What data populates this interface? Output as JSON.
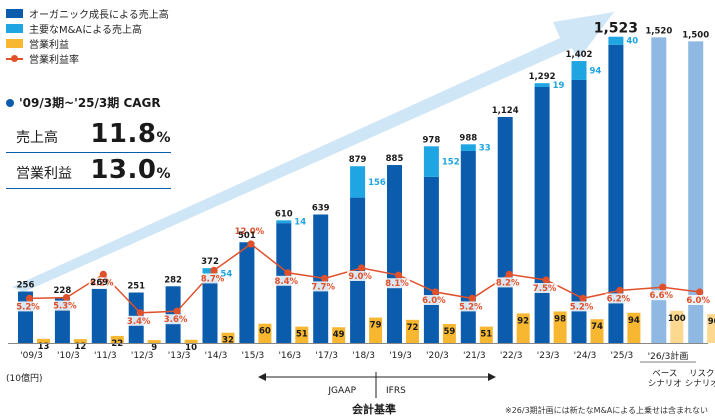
{
  "legend": {
    "organic": "オーガニック成長による売上高",
    "mna": "主要なM&Aによる売上高",
    "op": "営業利益",
    "margin": "営業利益率"
  },
  "cagr": {
    "title": "'09/3期~'25/3期 CAGR",
    "sales_label": "売上高",
    "sales_value": "11.8",
    "op_label": "営業利益",
    "op_value": "13.0",
    "unit": "%"
  },
  "unit_label": "(10億円)",
  "standards": {
    "jgaap": "JGAAP",
    "ifrs": "IFRS",
    "title": "会計基準"
  },
  "footnote": "※26/3期計画には新たなM&Aによる上乗せは含まれない",
  "colors": {
    "organic": "#0b5cad",
    "mna": "#1ea5e2",
    "op": "#f7b731",
    "plan_sales": "#8fb9e2",
    "plan_op": "#fcd98e",
    "margin": "#e0502a",
    "arrow": "#cfe6f7"
  },
  "chart_data": {
    "type": "bar",
    "categories": [
      "'09/3",
      "'10/3",
      "'11/3",
      "'12/3",
      "'13/3",
      "'14/3",
      "'15/3",
      "'16/3",
      "'17/3",
      "'18/3",
      "'19/3",
      "'20/3",
      "'21/3",
      "'22/3",
      "'23/3",
      "'24/3",
      "'25/3",
      "'26/3計画 ベース シナリオ",
      "'26/3計画 リスク シナリオ"
    ],
    "category_lines": [
      [
        "'09/3"
      ],
      [
        "'10/3"
      ],
      [
        "'11/3"
      ],
      [
        "'12/3"
      ],
      [
        "'13/3"
      ],
      [
        "'14/3"
      ],
      [
        "'15/3"
      ],
      [
        "'16/3"
      ],
      [
        "'17/3"
      ],
      [
        "'18/3"
      ],
      [
        "'19/3"
      ],
      [
        "'20/3"
      ],
      [
        "'21/3"
      ],
      [
        "'22/3"
      ],
      [
        "'23/3"
      ],
      [
        "'24/3"
      ],
      [
        "'25/3"
      ],
      [
        "ベース",
        "シナリオ"
      ],
      [
        "リスク",
        "シナリオ"
      ]
    ],
    "plan_header": "'26/3計画",
    "series": [
      {
        "name": "オーガニック成長による売上高",
        "values": [
          256,
          228,
          269,
          251,
          282,
          318,
          501,
          596,
          639,
          723,
          885,
          826,
          955,
          1124,
          1273,
          1308,
          1483,
          1520,
          1500
        ]
      },
      {
        "name": "主要なM&Aによる売上高",
        "values": [
          0,
          0,
          0,
          0,
          0,
          54,
          0,
          14,
          0,
          156,
          0,
          152,
          33,
          0,
          19,
          94,
          40,
          0,
          0
        ]
      },
      {
        "name": "営業利益",
        "values": [
          13,
          12,
          22,
          9,
          10,
          32,
          60,
          51,
          49,
          79,
          72,
          59,
          51,
          92,
          98,
          74,
          94,
          100,
          90
        ]
      },
      {
        "name": "営業利益率(%)",
        "values": [
          5.2,
          5.3,
          8.2,
          3.4,
          3.6,
          8.7,
          12.0,
          8.4,
          7.7,
          9.0,
          8.1,
          6.0,
          5.2,
          8.2,
          7.5,
          5.2,
          6.2,
          6.6,
          6.0
        ]
      }
    ],
    "total_labels": [
      "256",
      "228",
      "269",
      "251",
      "282",
      "372",
      "501",
      "610",
      "639",
      "879",
      "885",
      "978",
      "988",
      "1,124",
      "1,292",
      "1,402",
      "1,523",
      "1,520",
      "1,500"
    ],
    "mna_labels": [
      "",
      "",
      "",
      "",
      "",
      "54",
      "",
      "14",
      "",
      "156",
      "",
      "152",
      "33",
      "",
      "19",
      "94",
      "40",
      "",
      ""
    ],
    "op_labels": [
      "13",
      "12",
      "22",
      "9",
      "10",
      "32",
      "60",
      "51",
      "49",
      "79",
      "72",
      "59",
      "51",
      "92",
      "98",
      "74",
      "94",
      "100",
      "90"
    ],
    "margin_labels": [
      "5.2%",
      "5.3%",
      "8.2%",
      "3.4%",
      "3.6%",
      "8.7%",
      "12.0%",
      "8.4%",
      "7.7%",
      "9.0%",
      "8.1%",
      "6.0%",
      "5.2%",
      "8.2%",
      "7.5%",
      "5.2%",
      "6.2%",
      "6.6%",
      "6.0%"
    ],
    "plan_from_index": 17,
    "ylim": [
      0,
      1600
    ],
    "margin_ylim": [
      0,
      25
    ]
  }
}
